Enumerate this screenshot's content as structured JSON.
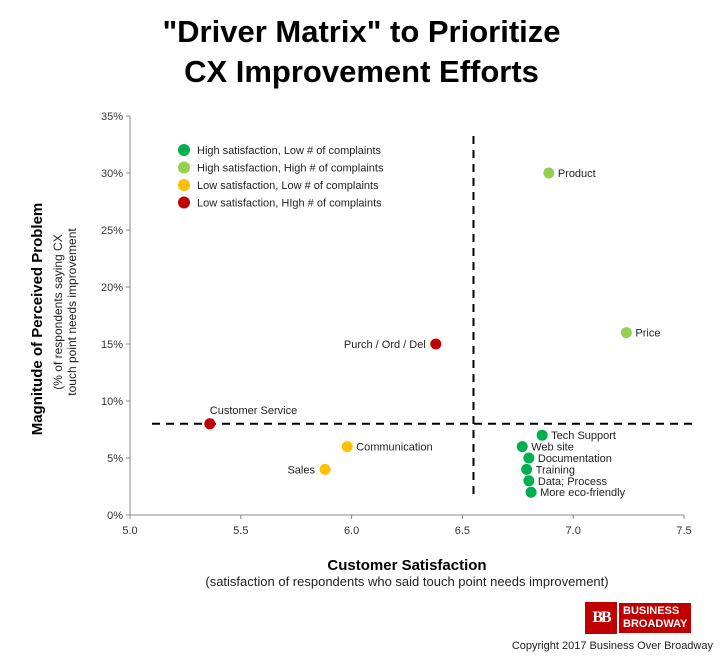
{
  "title_line1": "\"Driver Matrix\" to Prioritize",
  "title_line2": "CX Improvement Efforts",
  "copyright": "Copyright 2017 Business Over Broadway",
  "logo": {
    "mark": "BB",
    "line1": "BUSINESS",
    "line2": "BROADWAY",
    "color": "#c00000"
  },
  "chart_data": {
    "type": "scatter",
    "xlabel": "Customer Satisfaction",
    "xlabel_sub": "(satisfaction of respondents who said touch point needs improvement)",
    "ylabel": "Magnitude of Perceived Problem",
    "ylabel_sub1": "(% of respondents saying  CX",
    "ylabel_sub2": "touch point needs improvement",
    "xlim": [
      5.0,
      7.5
    ],
    "ylim": [
      0,
      35
    ],
    "x_ticks": [
      "5.0",
      "5.5",
      "6.0",
      "6.5",
      "7.0",
      "7.5"
    ],
    "y_ticks": [
      "0%",
      "5%",
      "10%",
      "15%",
      "20%",
      "25%",
      "30%",
      "35%"
    ],
    "x_tick_values": [
      5.0,
      5.5,
      6.0,
      6.5,
      7.0,
      7.5
    ],
    "y_tick_values": [
      0,
      5,
      10,
      15,
      20,
      25,
      30,
      35
    ],
    "grid": false,
    "reference_lines": {
      "x": 6.55,
      "y": 8
    },
    "legend_position": "top-left",
    "categories": [
      {
        "key": "hs_lc",
        "label": "High satisfaction,  Low # of complaints",
        "color": "#00b050"
      },
      {
        "key": "hs_hc",
        "label": "High satisfaction,  High # of complaints",
        "color": "#92d050"
      },
      {
        "key": "ls_lc",
        "label": "Low satisfaction,  Low # of complaints",
        "color": "#ffc000"
      },
      {
        "key": "ls_hc",
        "label": "Low satisfaction,  HIgh # of complaints",
        "color": "#c00000"
      }
    ],
    "points": [
      {
        "label": "Product",
        "x": 6.89,
        "y": 30,
        "category": "hs_hc",
        "label_pos": "right"
      },
      {
        "label": "Price",
        "x": 7.24,
        "y": 16,
        "category": "hs_hc",
        "label_pos": "right"
      },
      {
        "label": "Purch / Ord / Del",
        "x": 6.38,
        "y": 15,
        "category": "ls_hc",
        "label_pos": "left"
      },
      {
        "label": "Customer Service",
        "x": 5.36,
        "y": 8,
        "category": "ls_hc",
        "label_pos": "above"
      },
      {
        "label": "Communication",
        "x": 5.98,
        "y": 6,
        "category": "ls_lc",
        "label_pos": "right"
      },
      {
        "label": "Sales",
        "x": 5.88,
        "y": 4,
        "category": "ls_lc",
        "label_pos": "left"
      },
      {
        "label": "Tech Support",
        "x": 6.86,
        "y": 7,
        "category": "hs_lc",
        "label_pos": "right"
      },
      {
        "label": "Web site",
        "x": 6.77,
        "y": 6,
        "category": "hs_lc",
        "label_pos": "right"
      },
      {
        "label": "Documentation",
        "x": 6.8,
        "y": 5,
        "category": "hs_lc",
        "label_pos": "right"
      },
      {
        "label": "Training",
        "x": 6.79,
        "y": 4,
        "category": "hs_lc",
        "label_pos": "right"
      },
      {
        "label": "Data; Process",
        "x": 6.8,
        "y": 3,
        "category": "hs_lc",
        "label_pos": "right"
      },
      {
        "label": "More eco-friendly",
        "x": 6.81,
        "y": 2,
        "category": "hs_lc",
        "label_pos": "right"
      }
    ]
  }
}
